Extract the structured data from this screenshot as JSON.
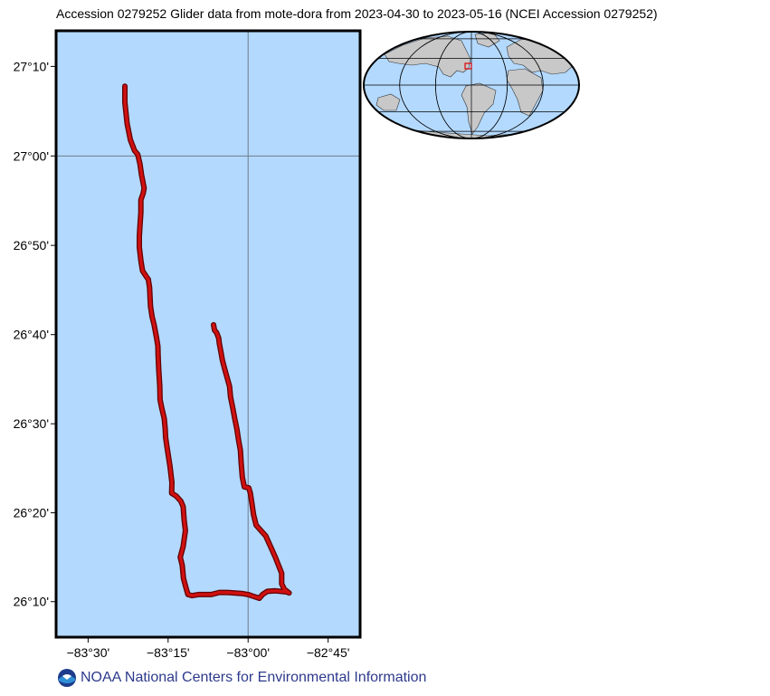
{
  "title": "Accession 0279252 Glider data from mote-dora from 2023-04-30 to 2023-05-16 (NCEI Accession 0279252)",
  "footer": {
    "org_name": "NOAA National Centers for Environmental Information",
    "logo_icon": "noaa-logo-icon"
  },
  "colors": {
    "ocean": "#b3d9ff",
    "land": "#c8c8c8",
    "track": "#d01010",
    "track_outline": "#600000",
    "gridline": "#6d7d8c",
    "footer_text": "#2d3a8c"
  },
  "map": {
    "projection": "mercator",
    "lon_range": [
      -83.6,
      -82.65
    ],
    "lat_range": [
      26.1,
      27.233
    ],
    "x_ticks": [
      {
        "value": -83.5,
        "label": "−83°30'"
      },
      {
        "value": -83.25,
        "label": "−83°15'"
      },
      {
        "value": -83.0,
        "label": "−83°00'"
      },
      {
        "value": -82.75,
        "label": "−82°45'"
      }
    ],
    "y_ticks": [
      {
        "value": 26.1667,
        "label": "26°10'"
      },
      {
        "value": 26.3333,
        "label": "26°20'"
      },
      {
        "value": 26.5,
        "label": "26°30'"
      },
      {
        "value": 26.6667,
        "label": "26°40'"
      },
      {
        "value": 26.8333,
        "label": "26°50'"
      },
      {
        "value": 27.0,
        "label": "27°00'"
      },
      {
        "value": 27.1667,
        "label": "27°10'"
      }
    ],
    "gridlines": {
      "lon": [
        -83.0
      ],
      "lat": [
        27.0
      ]
    },
    "track": [
      [
        -83.385,
        27.13
      ],
      [
        -83.385,
        27.1
      ],
      [
        -83.378,
        27.06
      ],
      [
        -83.368,
        27.03
      ],
      [
        -83.355,
        27.01
      ],
      [
        -83.345,
        27.003
      ],
      [
        -83.338,
        26.985
      ],
      [
        -83.333,
        26.965
      ],
      [
        -83.325,
        26.94
      ],
      [
        -83.328,
        26.93
      ],
      [
        -83.335,
        26.918
      ],
      [
        -83.335,
        26.895
      ],
      [
        -83.338,
        26.87
      ],
      [
        -83.34,
        26.85
      ],
      [
        -83.34,
        26.83
      ],
      [
        -83.335,
        26.805
      ],
      [
        -83.33,
        26.786
      ],
      [
        -83.318,
        26.775
      ],
      [
        -83.312,
        26.77
      ],
      [
        -83.308,
        26.755
      ],
      [
        -83.305,
        26.72
      ],
      [
        -83.3,
        26.7
      ],
      [
        -83.294,
        26.686
      ],
      [
        -83.286,
        26.66
      ],
      [
        -83.282,
        26.645
      ],
      [
        -83.281,
        26.625
      ],
      [
        -83.279,
        26.6
      ],
      [
        -83.276,
        26.57
      ],
      [
        -83.275,
        26.545
      ],
      [
        -83.27,
        26.53
      ],
      [
        -83.262,
        26.51
      ],
      [
        -83.259,
        26.49
      ],
      [
        -83.258,
        26.475
      ],
      [
        -83.253,
        26.455
      ],
      [
        -83.244,
        26.42
      ],
      [
        -83.238,
        26.39
      ],
      [
        -83.239,
        26.37
      ],
      [
        -83.225,
        26.365
      ],
      [
        -83.21,
        26.355
      ],
      [
        -83.203,
        26.345
      ],
      [
        -83.2,
        26.32
      ],
      [
        -83.196,
        26.3
      ],
      [
        -83.203,
        26.27
      ],
      [
        -83.212,
        26.25
      ],
      [
        -83.206,
        26.235
      ],
      [
        -83.202,
        26.21
      ],
      [
        -83.195,
        26.195
      ],
      [
        -83.188,
        26.18
      ],
      [
        -83.175,
        26.178
      ],
      [
        -83.155,
        26.18
      ],
      [
        -83.14,
        26.18
      ],
      [
        -83.115,
        26.18
      ],
      [
        -83.09,
        26.184
      ],
      [
        -83.065,
        26.184
      ],
      [
        -83.045,
        26.183
      ],
      [
        -83.02,
        26.182
      ],
      [
        -83.0,
        26.18
      ],
      [
        -82.985,
        26.177
      ],
      [
        -82.965,
        26.173
      ],
      [
        -82.955,
        26.18
      ],
      [
        -82.94,
        26.186
      ],
      [
        -82.915,
        26.187
      ],
      [
        -82.88,
        26.185
      ],
      [
        -82.872,
        26.183
      ],
      [
        -82.887,
        26.19
      ],
      [
        -82.895,
        26.2
      ],
      [
        -82.895,
        26.22
      ],
      [
        -82.905,
        26.235
      ],
      [
        -82.915,
        26.25
      ],
      [
        -82.93,
        26.27
      ],
      [
        -82.945,
        26.29
      ],
      [
        -82.96,
        26.3
      ],
      [
        -82.975,
        26.31
      ],
      [
        -82.983,
        26.33
      ],
      [
        -82.988,
        26.35
      ],
      [
        -82.993,
        26.37
      ],
      [
        -82.998,
        26.38
      ],
      [
        -83.012,
        26.382
      ],
      [
        -83.018,
        26.4
      ],
      [
        -83.022,
        26.43
      ],
      [
        -83.024,
        26.45
      ],
      [
        -83.03,
        26.47
      ],
      [
        -83.035,
        26.49
      ],
      [
        -83.042,
        26.51
      ],
      [
        -83.048,
        26.53
      ],
      [
        -83.055,
        26.55
      ],
      [
        -83.058,
        26.57
      ],
      [
        -83.065,
        26.585
      ],
      [
        -83.072,
        26.6
      ],
      [
        -83.08,
        26.618
      ],
      [
        -83.085,
        26.635
      ],
      [
        -83.09,
        26.65
      ],
      [
        -83.092,
        26.66
      ],
      [
        -83.098,
        26.67
      ],
      [
        -83.105,
        26.675
      ],
      [
        -83.108,
        26.685
      ]
    ]
  },
  "inset": {
    "type": "world-locator-globe",
    "highlight_lon": -83.0,
    "highlight_lat": 26.6,
    "meridians": [
      -180,
      -120,
      -60,
      0,
      60,
      120,
      180
    ],
    "parallels": [
      -60,
      -30,
      0,
      30,
      60
    ]
  }
}
